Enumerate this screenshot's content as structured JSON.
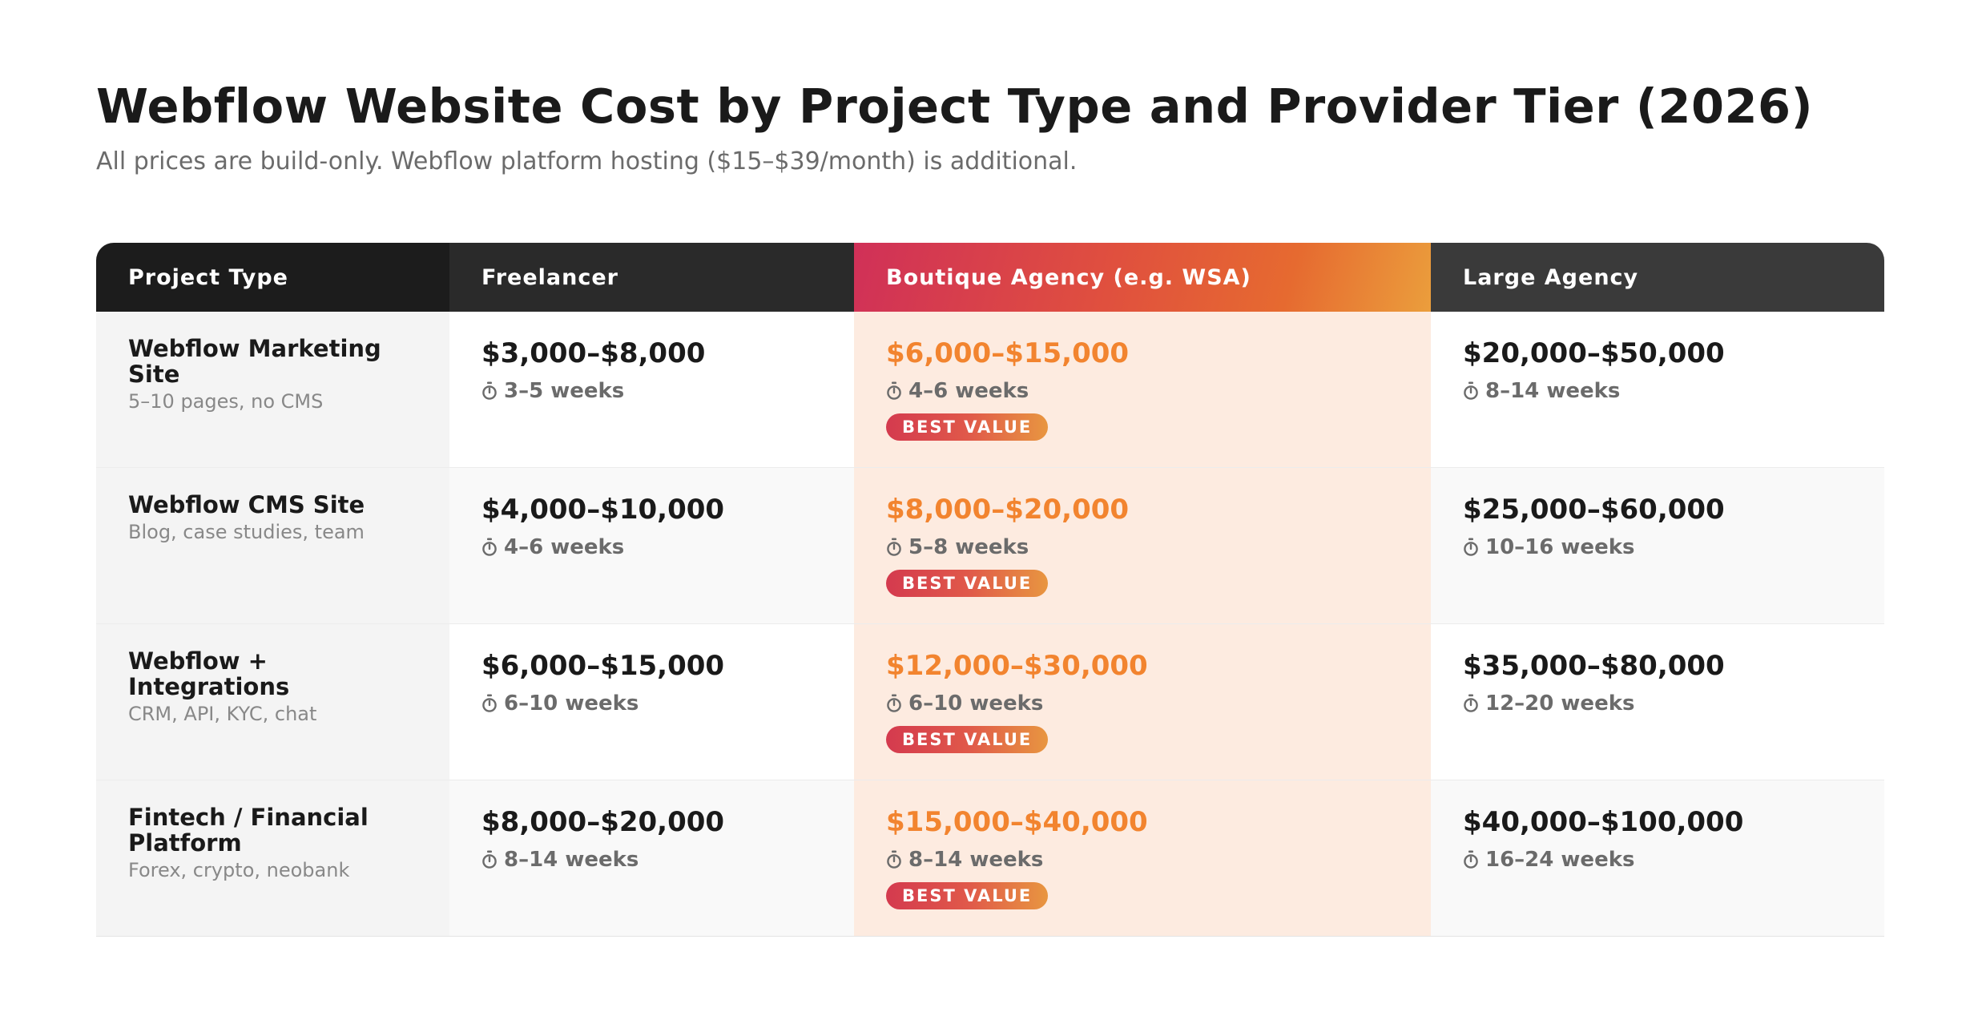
{
  "colors": {
    "accent_price": "#f2842f",
    "highlight_column_bg": "#fdebe0",
    "header_gradient_start": "#d03058",
    "header_gradient_end": "#eb9e3c",
    "header_dark": "#1c1c1c"
  },
  "chart_data": {
    "type": "table",
    "title": "Webflow Website Cost by Project Type and Provider Tier (2026)",
    "subtitle": "All prices are build-only. Webflow platform hosting ($15–$39/month) is additional.",
    "columns": [
      "Project Type",
      "Freelancer",
      "Boutique Agency (e.g. WSA)",
      "Large Agency"
    ],
    "highlighted_column": "Boutique Agency (e.g. WSA)",
    "badge_label": "BEST VALUE",
    "duration_icon": "stopwatch-icon",
    "rows": [
      {
        "name": "Webflow Marketing Site",
        "description": "5–10 pages, no CMS",
        "freelancer": {
          "price": "$3,000–$8,000",
          "duration": "3–5 weeks"
        },
        "boutique": {
          "price": "$6,000–$15,000",
          "duration": "4–6 weeks"
        },
        "large": {
          "price": "$20,000–$50,000",
          "duration": "8–14 weeks"
        }
      },
      {
        "name": "Webflow CMS Site",
        "description": "Blog, case studies, team",
        "freelancer": {
          "price": "$4,000–$10,000",
          "duration": "4–6 weeks"
        },
        "boutique": {
          "price": "$8,000–$20,000",
          "duration": "5–8 weeks"
        },
        "large": {
          "price": "$25,000–$60,000",
          "duration": "10–16 weeks"
        }
      },
      {
        "name": "Webflow + Integrations",
        "description": "CRM, API, KYC, chat",
        "freelancer": {
          "price": "$6,000–$15,000",
          "duration": "6–10 weeks"
        },
        "boutique": {
          "price": "$12,000–$30,000",
          "duration": "6–10 weeks"
        },
        "large": {
          "price": "$35,000–$80,000",
          "duration": "12–20 weeks"
        }
      },
      {
        "name": "Fintech / Financial Platform",
        "description": "Forex, crypto, neobank",
        "freelancer": {
          "price": "$8,000–$20,000",
          "duration": "8–14 weeks"
        },
        "boutique": {
          "price": "$15,000–$40,000",
          "duration": "8–14 weeks"
        },
        "large": {
          "price": "$40,000–$100,000",
          "duration": "16–24 weeks"
        }
      }
    ]
  }
}
